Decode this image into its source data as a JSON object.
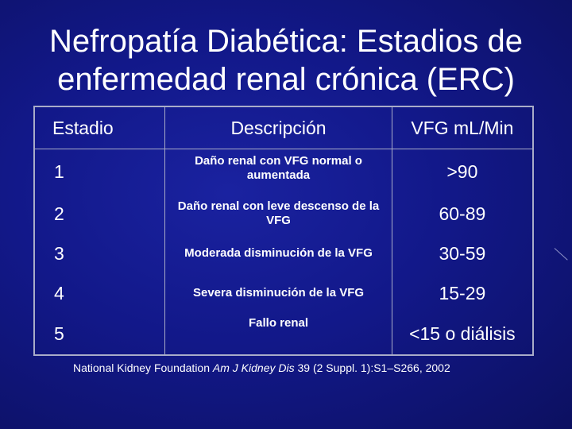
{
  "title": {
    "line1": "Nefropatía Diabética: Estadios de",
    "line2": "enfermedad renal crónica (ERC)"
  },
  "table": {
    "headers": [
      "Estadio",
      "Descripción",
      "VFG mL/Min"
    ],
    "rows": [
      {
        "stage": "1",
        "description": "Daño renal con VFG normal o aumentada",
        "gfr": ">90"
      },
      {
        "stage": "2",
        "description": "Daño renal con leve descenso de la VFG",
        "gfr": "60-89"
      },
      {
        "stage": "3",
        "description": "Moderada disminución de la VFG",
        "gfr": "30-59"
      },
      {
        "stage": "4",
        "description": "Severa disminución de la VFG",
        "gfr": "15-29"
      },
      {
        "stage": "5",
        "description": "Fallo renal",
        "gfr": "<15 o diálisis"
      }
    ]
  },
  "citation": {
    "org": "National Kidney Foundation",
    "journal": "Am J Kidney Dis",
    "ref": "39 (2 Suppl. 1):S1–S266, 2002"
  }
}
